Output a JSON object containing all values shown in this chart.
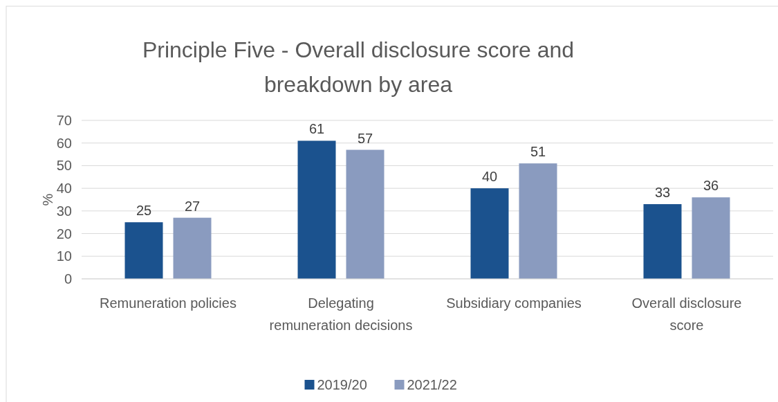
{
  "chart_data": {
    "type": "bar",
    "title": "Principle Five - Overall disclosure score and breakdown by area",
    "ylabel": "%",
    "categories": [
      "Remuneration policies",
      "Delegating remuneration decisions",
      "Subsidiary companies",
      "Overall disclosure score"
    ],
    "series": [
      {
        "name": "2019/20",
        "color": "#1b528e",
        "values": [
          25,
          61,
          40,
          33
        ]
      },
      {
        "name": "2021/22",
        "color": "#8a9bbf",
        "values": [
          27,
          57,
          51,
          36
        ]
      }
    ],
    "ylim": [
      0,
      70
    ],
    "yticks": [
      0,
      10,
      20,
      30,
      40,
      50,
      60,
      70
    ],
    "grid": "y",
    "legend": "bottom",
    "data_labels": true
  }
}
